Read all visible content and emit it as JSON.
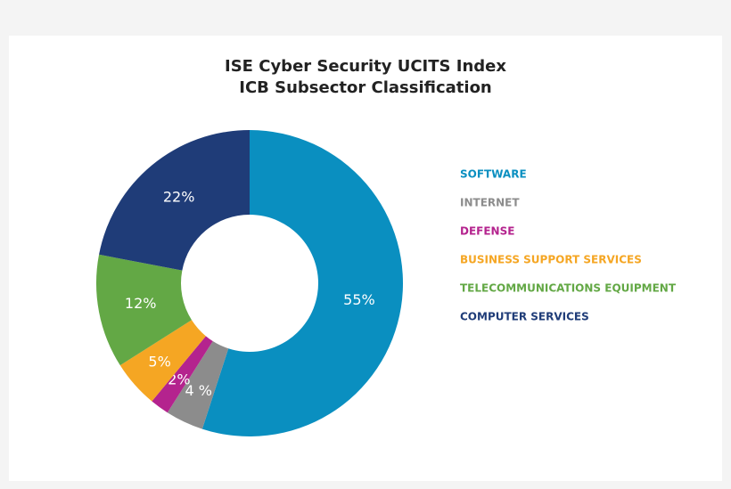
{
  "chart_data": {
    "type": "donut",
    "title": [
      "ISE Cyber Security UCITS Index",
      "ICB Subsector Classification"
    ],
    "categories": [
      "SOFTWARE",
      "INTERNET",
      "DEFENSE",
      "BUSINESS SUPPORT SERVICES",
      "TELECOMMUNICATIONS EQUIPMENT",
      "COMPUTER SERVICES"
    ],
    "values": [
      55,
      4,
      2,
      5,
      12,
      22
    ],
    "value_labels": [
      "55%",
      "4 %",
      "2%",
      "5%",
      "12%",
      "22%"
    ],
    "colors": [
      "#0a8fc0",
      "#8c8c8c",
      "#b4238e",
      "#f5a623",
      "#63a845",
      "#1f3c78"
    ],
    "legend": "right"
  }
}
